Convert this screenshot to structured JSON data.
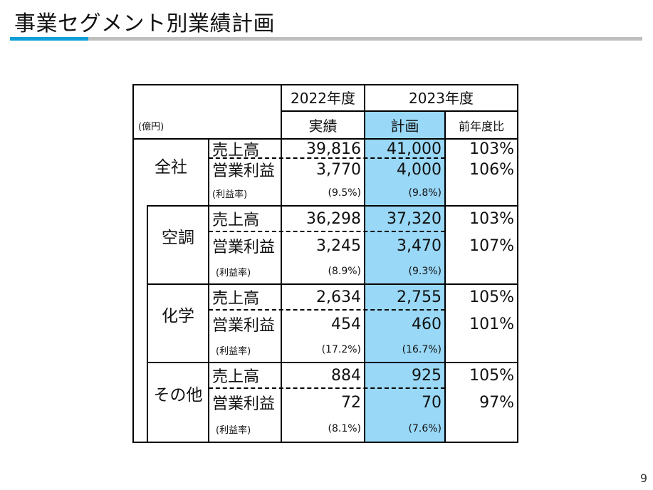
{
  "title": "事業セグメント別業績計画",
  "page_number": "9",
  "table": {
    "unit": "(億円)",
    "header": {
      "year_2022": "2022年度",
      "year_2023": "2023年度",
      "actual": "実績",
      "plan": "計画",
      "yoy": "前年度比"
    },
    "segments": [
      {
        "name": "全社",
        "rows": [
          {
            "label": "売上高",
            "actual": "39,816",
            "plan": "41,000",
            "yoy": "103%"
          },
          {
            "label": "営業利益",
            "actual": "3,770",
            "plan": "4,000",
            "yoy": "106%"
          },
          {
            "label": "(利益率)",
            "actual": "(9.5%)",
            "plan": "(9.8%)",
            "yoy": ""
          }
        ]
      },
      {
        "name": "空調",
        "rows": [
          {
            "label": "売上高",
            "actual": "36,298",
            "plan": "37,320",
            "yoy": "103%"
          },
          {
            "label": "営業利益",
            "actual": "3,245",
            "plan": "3,470",
            "yoy": "107%"
          },
          {
            "label": "(利益率)",
            "actual": "(8.9%)",
            "plan": "(9.3%)",
            "yoy": ""
          }
        ]
      },
      {
        "name": "化学",
        "rows": [
          {
            "label": "売上高",
            "actual": "2,634",
            "plan": "2,755",
            "yoy": "105%"
          },
          {
            "label": "営業利益",
            "actual": "454",
            "plan": "460",
            "yoy": "101%"
          },
          {
            "label": "(利益率)",
            "actual": "(17.2%)",
            "plan": "(16.7%)",
            "yoy": ""
          }
        ]
      },
      {
        "name": "その他",
        "rows": [
          {
            "label": "売上高",
            "actual": "884",
            "plan": "925",
            "yoy": "105%"
          },
          {
            "label": "営業利益",
            "actual": "72",
            "plan": "70",
            "yoy": "97%"
          },
          {
            "label": "(利益率)",
            "actual": "(8.1%)",
            "plan": "(7.6%)",
            "yoy": ""
          }
        ]
      }
    ]
  },
  "colors": {
    "accent": "#0f9ed5",
    "rule_gray": "#bfbfbf",
    "plan_column": "#99d8f6"
  }
}
